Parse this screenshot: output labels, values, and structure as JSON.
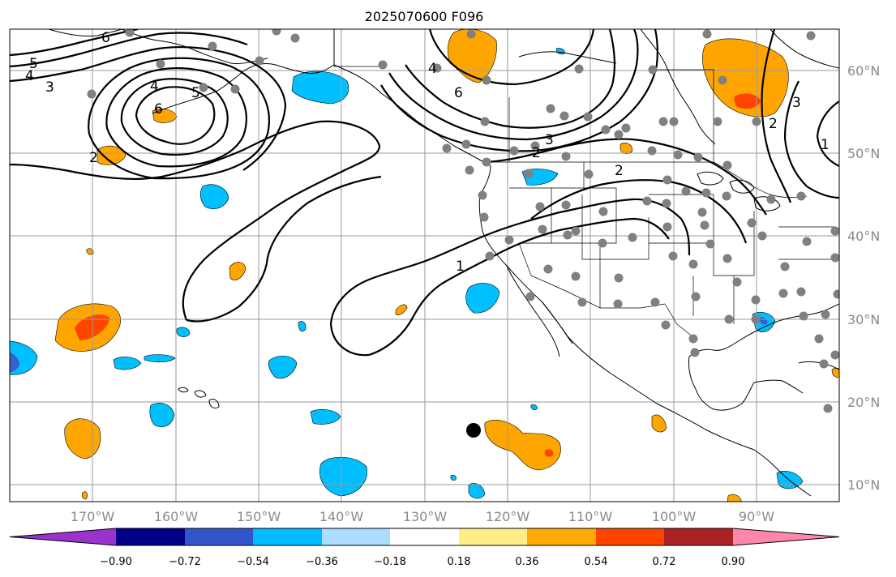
{
  "title": "2025070600 F096",
  "lon_labels": [
    "170°W",
    "160°W",
    "150°W",
    "140°W",
    "130°W",
    "120°W",
    "110°W",
    "100°W",
    "90°W"
  ],
  "lat_labels": [
    "60°N",
    "50°N",
    "40°N",
    "30°N",
    "20°N",
    "10°N"
  ],
  "contour_labels": [
    "6",
    "5",
    "4",
    "3",
    "4",
    "5",
    "6",
    "2",
    "4",
    "6",
    "3",
    "2",
    "2",
    "1",
    "2",
    "3",
    "1"
  ],
  "colorbar": {
    "ticks": [
      "−0.90",
      "−0.72",
      "−0.54",
      "−0.36",
      "−0.18",
      "0.18",
      "0.36",
      "0.54",
      "0.72",
      "0.90"
    ],
    "colors": [
      "#9933cc",
      "#000088",
      "#3355cc",
      "#00bbff",
      "#aaddff",
      "#ffffff",
      "#ffee88",
      "#ffaa00",
      "#ff4400",
      "#aa2222",
      "#ff88aa"
    ]
  },
  "colors": {
    "positive_1": "#ffa500",
    "positive_2": "#ff4500",
    "negative_1": "#00bfff",
    "negative_2": "#3a5fcd",
    "station": "#808080"
  },
  "marker": "black-circle"
}
